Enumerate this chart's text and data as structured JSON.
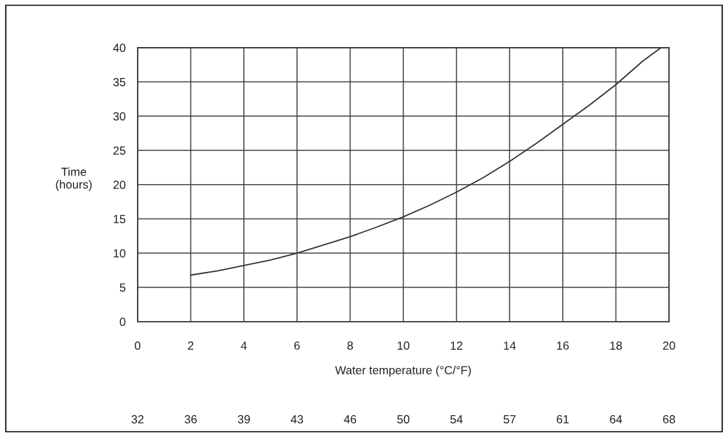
{
  "chart_data": {
    "type": "line",
    "xlabel": "Water temperature (°C/°F)",
    "ylabel": "Time\n(hours)",
    "series": [
      {
        "color": "#333333",
        "x": [
          2,
          3,
          4,
          5,
          6,
          7,
          8,
          9,
          10,
          11,
          12,
          13,
          14,
          15,
          16,
          17,
          18,
          19,
          19.7
        ],
        "values": [
          6.8,
          7.4,
          8.2,
          9.0,
          10.0,
          11.2,
          12.4,
          13.8,
          15.3,
          17.0,
          18.9,
          21.0,
          23.4,
          26.0,
          28.8,
          31.6,
          34.6,
          38.0,
          40
        ]
      }
    ],
    "xlim": [
      0,
      20
    ],
    "xticks": [
      0,
      2,
      4,
      6,
      8,
      10,
      12,
      14,
      16,
      18,
      20
    ],
    "ylim": [
      0,
      40
    ],
    "yticks": [
      0,
      5,
      10,
      15,
      20,
      25,
      30,
      35,
      40
    ],
    "x2lim": [
      32,
      68
    ],
    "x2ticks": [
      {
        "value": 32,
        "label": "32"
      },
      {
        "value": 35.6,
        "label": "36"
      },
      {
        "value": 39.2,
        "label": "39"
      },
      {
        "value": 42.8,
        "label": "43"
      },
      {
        "value": 46.4,
        "label": "46"
      },
      {
        "value": 50,
        "label": "50"
      },
      {
        "value": 53.6,
        "label": "54"
      },
      {
        "value": 57.2,
        "label": "57"
      },
      {
        "value": 60.8,
        "label": "61"
      },
      {
        "value": 64.4,
        "label": "64"
      },
      {
        "value": 68,
        "label": "68"
      }
    ],
    "grid": true,
    "line_style": "solid",
    "marker": "none"
  }
}
